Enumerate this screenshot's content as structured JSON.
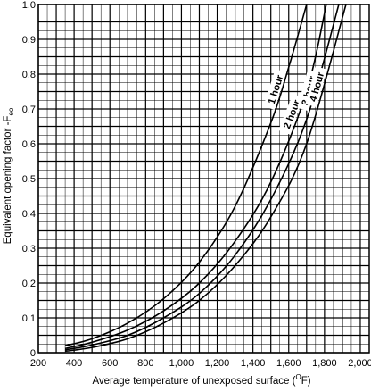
{
  "chart_data": {
    "type": "line",
    "title": "",
    "xlabel": "Average temperature of unexposed surface (",
    "xlabel_unit_superscript": "O",
    "xlabel_unit_suffix": "F)",
    "ylabel": "Equivalent opening factor -F",
    "ylabel_subscript": "eo",
    "xlim": [
      200,
      2050
    ],
    "ylim": [
      0,
      1.0
    ],
    "x_ticks": [
      200,
      400,
      600,
      800,
      1000,
      1200,
      1400,
      1600,
      1800,
      2000
    ],
    "x_tick_labels": [
      "200",
      "400",
      "600",
      "800",
      "1,000",
      "1,200",
      "1,400",
      "1,600",
      "1,800",
      "2,000"
    ],
    "y_ticks": [
      0,
      0.1,
      0.2,
      0.3,
      0.4,
      0.5,
      0.6,
      0.7,
      0.8,
      0.9,
      1.0
    ],
    "y_tick_labels": [
      "0",
      "0.1",
      "0.2",
      "0.3",
      "0.4",
      "0.5",
      "0.6",
      "0.7",
      "0.8",
      "0.9",
      "1.0"
    ],
    "grid": true,
    "grid_minor": true,
    "curve_color": "#000000",
    "series": [
      {
        "name": "1 hour",
        "x": [
          350,
          500,
          700,
          900,
          1100,
          1300,
          1500,
          1600,
          1700
        ],
        "y": [
          0.02,
          0.04,
          0.085,
          0.155,
          0.26,
          0.42,
          0.66,
          0.82,
          1.0
        ]
      },
      {
        "name": "2 hour",
        "x": [
          350,
          500,
          700,
          900,
          1100,
          1300,
          1500,
          1700,
          1810
        ],
        "y": [
          0.012,
          0.03,
          0.065,
          0.12,
          0.2,
          0.32,
          0.49,
          0.75,
          1.0
        ]
      },
      {
        "name": "3 hour",
        "x": [
          350,
          500,
          700,
          900,
          1100,
          1300,
          1500,
          1700,
          1880
        ],
        "y": [
          0.008,
          0.022,
          0.05,
          0.1,
          0.17,
          0.28,
          0.44,
          0.67,
          1.0
        ]
      },
      {
        "name": "4 hour",
        "x": [
          350,
          500,
          700,
          900,
          1100,
          1300,
          1500,
          1700,
          1920
        ],
        "y": [
          0.004,
          0.015,
          0.04,
          0.085,
          0.15,
          0.25,
          0.39,
          0.6,
          1.0
        ]
      }
    ]
  }
}
